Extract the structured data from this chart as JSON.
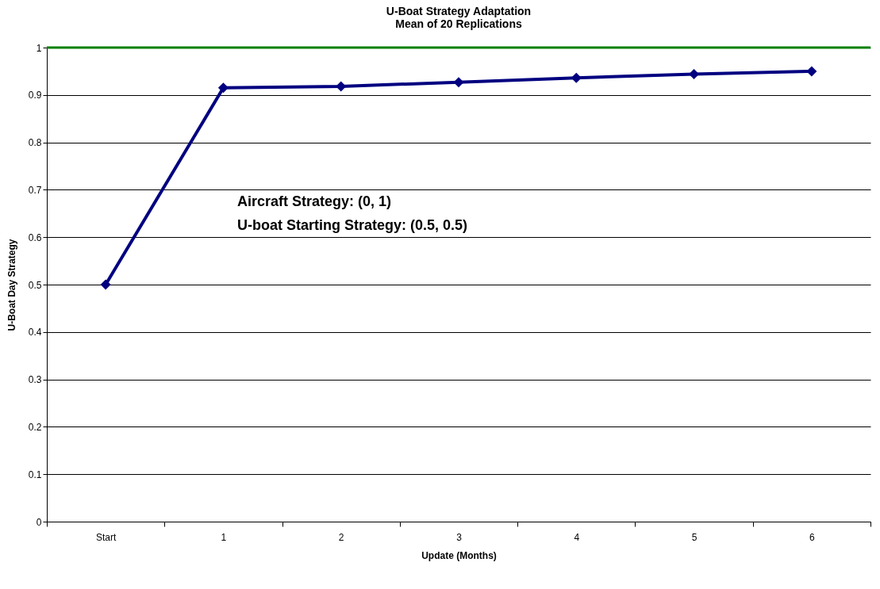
{
  "chart_data": {
    "type": "line",
    "title": "U-Boat Strategy Adaptation",
    "subtitle": "Mean of 20 Replications",
    "xlabel": "Update (Months)",
    "ylabel": "U-Boat Day Strategy",
    "categories": [
      "Start",
      "1",
      "2",
      "3",
      "4",
      "5",
      "6"
    ],
    "series": [
      {
        "color": "#000080",
        "values": [
          0.5,
          0.915,
          0.918,
          0.927,
          0.936,
          0.944,
          0.95
        ]
      }
    ],
    "ylim": [
      0,
      1
    ],
    "yticks": [
      0,
      0.1,
      0.2,
      0.3,
      0.4,
      0.5,
      0.6,
      0.7,
      0.8,
      0.9,
      1
    ],
    "grid": "y",
    "marker": "diamond",
    "line_style": "solid",
    "ref_lines": [
      {
        "axis": "y",
        "value": 1,
        "color": "#008000"
      }
    ],
    "annotations": [
      "Aircraft Strategy: (0, 1)",
      "U-boat Starting Strategy: (0.5, 0.5)"
    ]
  }
}
